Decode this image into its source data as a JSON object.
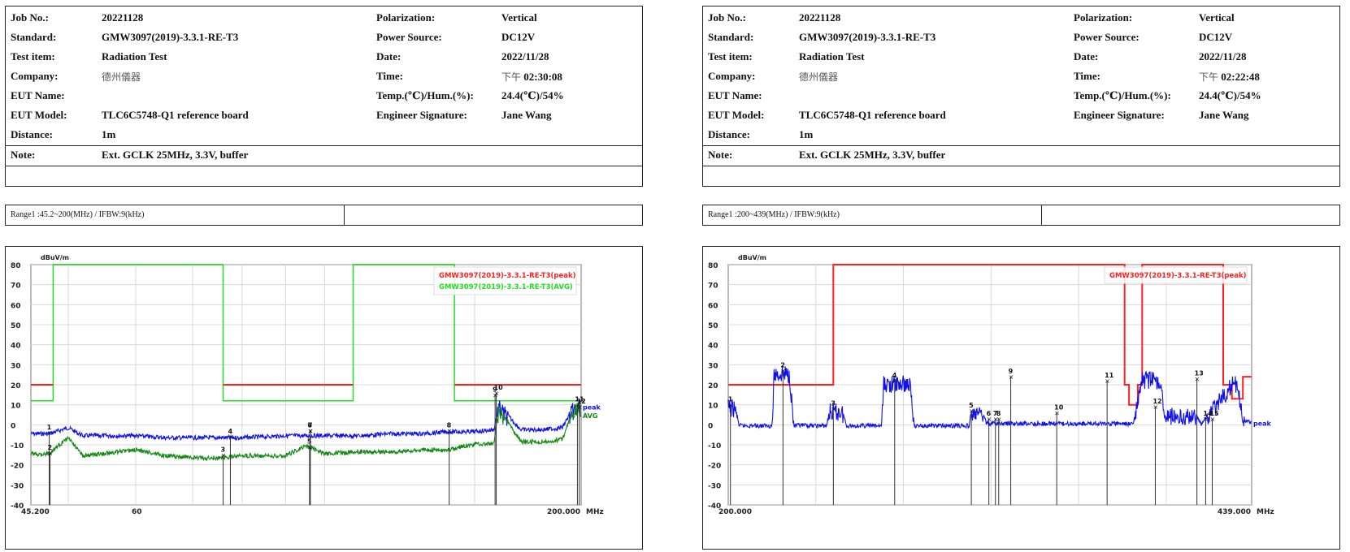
{
  "reports": [
    {
      "info": {
        "job_no_label": "Job No.:",
        "job_no": "20221128",
        "standard_label": "Standard:",
        "standard": "GMW3097(2019)-3.3.1-RE-T3",
        "test_item_label": "Test item:",
        "test_item": "Radiation Test",
        "company_label": "Company:",
        "company": "德州儀器",
        "eut_name_label": "EUT Name:",
        "eut_name": "",
        "eut_model_label": "EUT Model:",
        "eut_model": "TLC6C5748-Q1 reference board",
        "distance_label": "Distance:",
        "distance": "1m",
        "note_label": "Note:",
        "note": "Ext. GCLK 25MHz, 3.3V, buffer",
        "polarization_label": "Polarization:",
        "polarization": "Vertical",
        "power_source_label": "Power Source:",
        "power_source": "DC12V",
        "date_label": "Date:",
        "date": "2022/11/28",
        "time_label": "Time:",
        "time_prefix": "下午",
        "time": "02:30:08",
        "temp_hum_label": "Temp.(℃)/Hum.(%):",
        "temp_hum": "24.4(℃)/54%",
        "engineer_label": "Engineer Signature:",
        "engineer": "Jane Wang"
      },
      "range_text": "Range1 :45.2~200(MHz) / IFBW:9(kHz)"
    },
    {
      "info": {
        "job_no_label": "Job No.:",
        "job_no": "20221128",
        "standard_label": "Standard:",
        "standard": "GMW3097(2019)-3.3.1-RE-T3",
        "test_item_label": "Test item:",
        "test_item": "Radiation Test",
        "company_label": "Company:",
        "company": "德州儀器",
        "eut_name_label": "EUT Name:",
        "eut_name": "",
        "eut_model_label": "EUT Model:",
        "eut_model": "TLC6C5748-Q1 reference board",
        "distance_label": "Distance:",
        "distance": "1m",
        "note_label": "Note:",
        "note": "Ext. GCLK 25MHz, 3.3V, buffer",
        "polarization_label": "Polarization:",
        "polarization": "Vertical",
        "power_source_label": "Power Source:",
        "power_source": "DC12V",
        "date_label": "Date:",
        "date": "2022/11/28",
        "time_label": "Time:",
        "time_prefix": "下午",
        "time": "02:22:48",
        "temp_hum_label": "Temp.(℃)/Hum.(%):",
        "temp_hum": "24.4(℃)/54%",
        "engineer_label": "Engineer Signature:",
        "engineer": "Jane Wang"
      },
      "range_text": "Range1 :200~439(MHz) / IFBW:9(kHz)"
    }
  ],
  "colors": {
    "peak_limit": "#ff2020",
    "avg_limit": "#22dd22",
    "peak_trace": "#1010ee",
    "avg_trace": "#118811",
    "grid": "#d8d8d8",
    "marker": "#333333"
  },
  "chart_data": [
    {
      "type": "line",
      "title": "Range1 :45.2~200(MHz) / IFBW:9(kHz)",
      "ylabel": "dBuV/m",
      "xlabel": "MHz",
      "ylim": [
        -40,
        80
      ],
      "xlim": [
        45.2,
        200.0
      ],
      "x_scale": "log",
      "yticks": [
        80,
        70,
        60,
        50,
        40,
        30,
        20,
        10,
        0,
        -10,
        -20,
        -30,
        -40
      ],
      "xtick_labels": [
        "45.200",
        "60",
        "200.000"
      ],
      "legend": [
        "GMW3097(2019)-3.3.1-RE-T3(peak)",
        "GMW3097(2019)-3.3.1-RE-T3(AVG)"
      ],
      "trace_labels": [
        "peak",
        "AVG"
      ],
      "grid": true,
      "limits": {
        "peak": [
          [
            45.2,
            20
          ],
          [
            48.0,
            20
          ],
          [
            48.0,
            null
          ],
          [
            76.0,
            null
          ],
          [
            76.0,
            20
          ],
          [
            108.0,
            20
          ],
          [
            108.0,
            null
          ],
          [
            142.0,
            null
          ],
          [
            142.0,
            20
          ],
          [
            200.0,
            20
          ]
        ],
        "avg": [
          [
            45.2,
            12
          ],
          [
            48.0,
            12
          ],
          [
            48.0,
            80
          ],
          [
            76.0,
            80
          ],
          [
            76.0,
            12
          ],
          [
            108.0,
            12
          ],
          [
            108.0,
            80
          ],
          [
            142.0,
            80
          ],
          [
            142.0,
            12
          ],
          [
            200.0,
            12
          ]
        ]
      },
      "series": [
        {
          "name": "peak",
          "x": [
            45.2,
            47.5,
            50,
            52,
            55,
            60,
            65,
            70,
            76,
            80,
            90,
            100,
            110,
            120,
            130,
            140,
            150,
            158,
            160,
            170,
            180,
            190,
            196,
            200
          ],
          "values": [
            -4,
            -4,
            -1,
            -5,
            -5,
            -5,
            -6,
            -6,
            -6,
            -6,
            -5,
            -5,
            -5,
            -4,
            -4,
            -3,
            -3,
            -2,
            10,
            -2,
            -2,
            -1,
            9,
            10
          ]
        },
        {
          "name": "AVG",
          "x": [
            45.2,
            47.5,
            50,
            52,
            55,
            60,
            65,
            70,
            76,
            80,
            90,
            95,
            100,
            110,
            120,
            130,
            140,
            150,
            158,
            160,
            170,
            180,
            190,
            196,
            200
          ],
          "values": [
            -14,
            -14,
            -6,
            -15,
            -14,
            -12,
            -15,
            -16,
            -16,
            -15,
            -15,
            -10,
            -14,
            -13,
            -13,
            -12,
            -12,
            -9,
            -9,
            9,
            -8,
            -8,
            -7,
            8,
            9
          ]
        }
      ],
      "markers": [
        {
          "id": "1",
          "freq": 47.5,
          "level": -4
        },
        {
          "id": "2",
          "freq": 47.6,
          "level": -14
        },
        {
          "id": "3",
          "freq": 76.0,
          "level": -15
        },
        {
          "id": "4",
          "freq": 77.5,
          "level": -6
        },
        {
          "id": "5",
          "freq": 96.0,
          "level": -11
        },
        {
          "id": "6",
          "freq": 96.1,
          "level": -3
        },
        {
          "id": "7",
          "freq": 96.2,
          "level": -3
        },
        {
          "id": "8",
          "freq": 140.0,
          "level": -3
        },
        {
          "id": "9",
          "freq": 158.5,
          "level": 15
        },
        {
          "id": "10",
          "freq": 159.0,
          "level": 16
        },
        {
          "id": "11",
          "freq": 198.0,
          "level": 10
        },
        {
          "id": "12",
          "freq": 199.0,
          "level": 9
        }
      ]
    },
    {
      "type": "line",
      "title": "Range1 :200~439(MHz) / IFBW:9(kHz)",
      "ylabel": "dBuV/m",
      "xlabel": "MHz",
      "ylim": [
        -40,
        80
      ],
      "xlim": [
        200.0,
        439.0
      ],
      "x_scale": "linear",
      "yticks": [
        80,
        70,
        60,
        50,
        40,
        30,
        20,
        10,
        0,
        -10,
        -20,
        -30,
        -40
      ],
      "xtick_labels": [
        "200.000",
        "439.000"
      ],
      "legend": [
        "GMW3097(2019)-3.3.1-RE-T3(peak)"
      ],
      "trace_labels": [
        "peak"
      ],
      "grid": true,
      "limits": {
        "peak": [
          [
            200,
            20
          ],
          [
            248,
            20
          ],
          [
            248,
            80
          ],
          [
            381,
            80
          ],
          [
            381,
            20
          ],
          [
            383,
            20
          ],
          [
            383,
            10
          ],
          [
            387,
            10
          ],
          [
            387,
            20
          ],
          [
            389,
            20
          ],
          [
            389,
            80
          ],
          [
            426,
            80
          ],
          [
            426,
            20
          ],
          [
            430,
            20
          ],
          [
            430,
            13
          ],
          [
            435,
            13
          ],
          [
            435,
            24
          ],
          [
            439,
            24
          ]
        ]
      },
      "series": [
        {
          "name": "peak",
          "x": [
            200,
            203,
            205,
            220,
            221,
            228,
            230,
            245,
            246,
            252,
            254,
            270,
            271,
            283,
            285,
            310,
            311,
            316,
            318,
            380,
            385,
            389,
            397,
            400,
            398,
            400,
            413,
            416,
            430,
            432,
            436,
            439
          ],
          "values": [
            10,
            10,
            0,
            0,
            27,
            27,
            0,
            0,
            8,
            8,
            0,
            0,
            22,
            22,
            0,
            0,
            7,
            7,
            1,
            1,
            1,
            24,
            24,
            1,
            1,
            6,
            6,
            1,
            22,
            22,
            2,
            2
          ]
        }
      ],
      "markers": [
        {
          "id": "1",
          "freq": 201.0,
          "level": 10
        },
        {
          "id": "2",
          "freq": 225.0,
          "level": 27
        },
        {
          "id": "3",
          "freq": 248.0,
          "level": 8
        },
        {
          "id": "4",
          "freq": 276.0,
          "level": 22
        },
        {
          "id": "5",
          "freq": 311.0,
          "level": 7
        },
        {
          "id": "6",
          "freq": 319.0,
          "level": 3
        },
        {
          "id": "7",
          "freq": 322.0,
          "level": 3
        },
        {
          "id": "8",
          "freq": 323.5,
          "level": 3
        },
        {
          "id": "9",
          "freq": 329.0,
          "level": 24
        },
        {
          "id": "10",
          "freq": 350.0,
          "level": 6
        },
        {
          "id": "11",
          "freq": 373.0,
          "level": 22
        },
        {
          "id": "12",
          "freq": 395.0,
          "level": 9
        },
        {
          "id": "13",
          "freq": 414.0,
          "level": 23
        },
        {
          "id": "14",
          "freq": 418.0,
          "level": 3
        },
        {
          "id": "15",
          "freq": 421.0,
          "level": 3
        }
      ]
    }
  ]
}
